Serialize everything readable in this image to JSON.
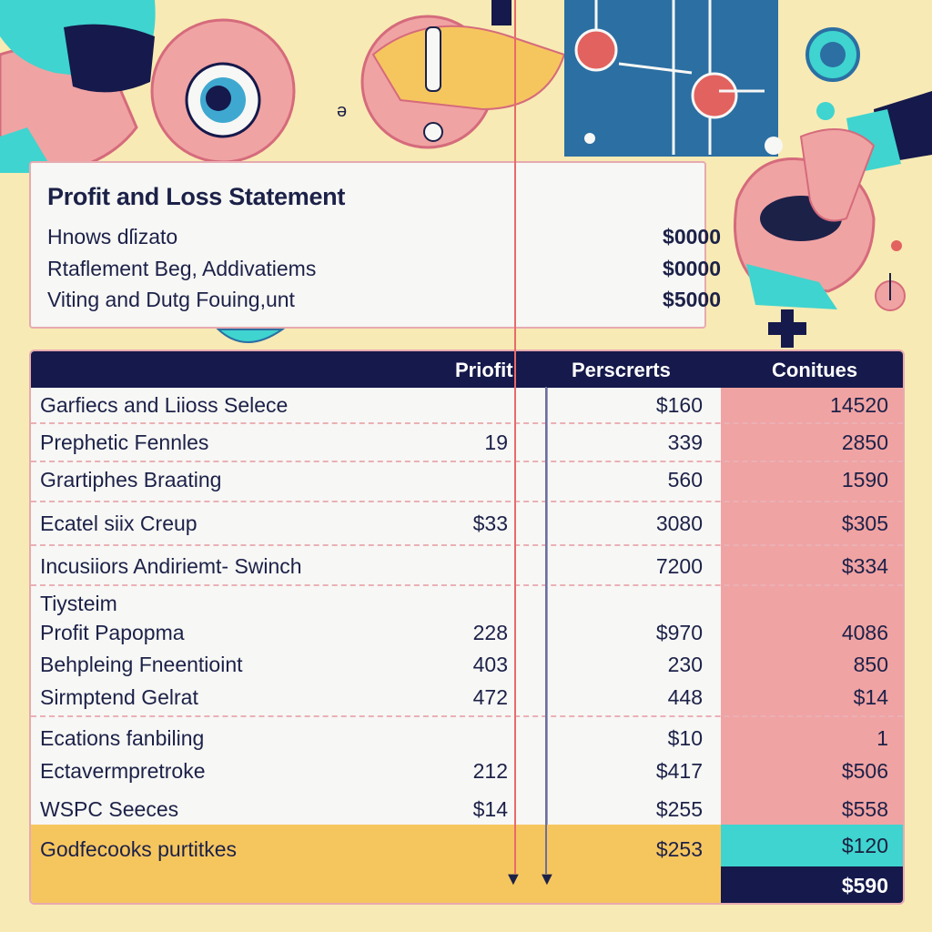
{
  "summary": {
    "title": "Profit and Loss Statement",
    "rows": [
      {
        "label": "Hnows dſizato",
        "amount": "$0000"
      },
      {
        "label": "Rtaflement Beg, Addivatiems",
        "amount": "$0000"
      },
      {
        "label": "Viting and  Dutg Fouing,unt",
        "amount": "$5000"
      }
    ]
  },
  "table": {
    "headers": [
      "Priofit",
      "Perscrerts",
      "Conitues"
    ],
    "rows": [
      {
        "label": "Garfiecs and Liioss Selece",
        "c1": "",
        "c2": "$160",
        "c3": "14520"
      },
      {
        "label": "Prephetic Fennles",
        "c1": "19",
        "c2": "339",
        "c3": "2850"
      },
      {
        "label": "Grartiphes Braating",
        "c1": "",
        "c2": "560",
        "c3": "1590"
      },
      {
        "label": "Ecatel siix Creup",
        "c1": "$33",
        "c2": "3080",
        "c3": "$305"
      },
      {
        "label": "Incusiiors Andiriemt- Swinch",
        "c1": "",
        "c2": "7200",
        "c3": "$334"
      },
      {
        "label": "Tiysteim",
        "c1": "",
        "c2": "",
        "c3": ""
      },
      {
        "label": "Profit Papopma",
        "c1": "228",
        "c2": "$970",
        "c3": "4086"
      },
      {
        "label": "Behpleing Fneentioint",
        "c1": "403",
        "c2": "230",
        "c3": "850"
      },
      {
        "label": "Sirmptend Gelrat",
        "c1": "472",
        "c2": "448",
        "c3": "$14"
      },
      {
        "label": "Ecations fanbiling",
        "c1": "",
        "c2": "$10",
        "c3": "1"
      },
      {
        "label": "Ectavermpretroke",
        "c1": "212",
        "c2": "$417",
        "c3": "$506"
      },
      {
        "label": "WSPC Seeces",
        "c1": "$14",
        "c2": "$255",
        "c3": "$558"
      }
    ],
    "footer": {
      "label": "Godfecooks purtitkes",
      "c2": "$253",
      "c3": "$120",
      "total": "$590"
    }
  },
  "colors": {
    "navy": "#15194b",
    "pink": "#f0a3a3",
    "yellow": "#f6c65e",
    "teal": "#3fd4cf",
    "cream": "#f8eab4"
  }
}
